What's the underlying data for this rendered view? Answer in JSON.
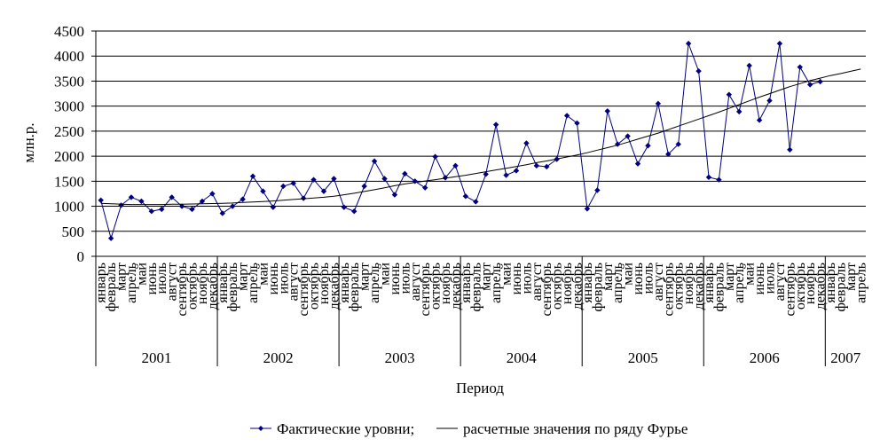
{
  "chart_data": {
    "type": "line",
    "title": "",
    "xlabel": "Период",
    "ylabel": "млн.р.",
    "ylim": [
      0,
      4500
    ],
    "yticks": [
      "0",
      "500",
      "1000",
      "1500",
      "2000",
      "2500",
      "3000",
      "3500",
      "4000",
      "4500"
    ],
    "grid": "horizontal",
    "legend_position": "bottom",
    "categories": [
      "январь",
      "февраль",
      "март",
      "апрель",
      "май",
      "июнь",
      "июль",
      "август",
      "сентябрь",
      "октябрь",
      "ноябрь",
      "декабрь",
      "январь",
      "февраль",
      "март",
      "апрель",
      "май",
      "июнь",
      "июль",
      "август",
      "сентябрь",
      "октябрь",
      "ноябрь",
      "декабрь",
      "январь",
      "февраль",
      "март",
      "апрель",
      "май",
      "июнь",
      "июль",
      "август",
      "сентябрь",
      "октябрь",
      "ноябрь",
      "декабрь",
      "январь",
      "февраль",
      "март",
      "апрель",
      "май",
      "июнь",
      "июль",
      "август",
      "сентябрь",
      "октябрь",
      "ноябрь",
      "декабрь",
      "январь",
      "февраль",
      "март",
      "апрель",
      "май",
      "июнь",
      "июль",
      "август",
      "сентябрь",
      "октябрь",
      "ноябрь",
      "декабрь",
      "январь",
      "февраль",
      "март",
      "апрель",
      "май",
      "июнь",
      "июль",
      "август",
      "сентябрь",
      "октябрь",
      "ноябрь",
      "декабрь",
      "январь",
      "февраль",
      "март",
      "апрель"
    ],
    "years": [
      {
        "label": "2001",
        "months": 12
      },
      {
        "label": "2002",
        "months": 12
      },
      {
        "label": "2003",
        "months": 12
      },
      {
        "label": "2004",
        "months": 12
      },
      {
        "label": "2005",
        "months": 12
      },
      {
        "label": "2006",
        "months": 12
      },
      {
        "label": "2007",
        "months": 4
      }
    ],
    "series": [
      {
        "name": "Фактические уровни;",
        "style": "line-with-diamond-markers",
        "color": "#000080",
        "values": [
          1120,
          360,
          1020,
          1180,
          1100,
          900,
          940,
          1180,
          1000,
          940,
          1100,
          1250,
          860,
          1000,
          1140,
          1600,
          1300,
          980,
          1400,
          1460,
          1160,
          1530,
          1300,
          1550,
          980,
          900,
          1400,
          1900,
          1550,
          1230,
          1650,
          1500,
          1370,
          1990,
          1570,
          1810,
          1200,
          1090,
          1640,
          2630,
          1620,
          1710,
          2260,
          1810,
          1790,
          1940,
          2810,
          2660,
          950,
          1320,
          2900,
          2240,
          2400,
          1850,
          2210,
          3050,
          2040,
          2240,
          4250,
          3700,
          1580,
          1530,
          3230,
          2890,
          3810,
          2720,
          3110,
          4250,
          2130,
          3780,
          3430,
          3490,
          null,
          null,
          null,
          null
        ]
      },
      {
        "name": "расчетные значения по ряду Фурье",
        "style": "line",
        "color": "#000000",
        "values": [
          1060,
          1050,
          1040,
          1035,
          1035,
          1035,
          1035,
          1040,
          1040,
          1045,
          1050,
          1055,
          1060,
          1065,
          1075,
          1085,
          1095,
          1105,
          1120,
          1135,
          1150,
          1165,
          1180,
          1200,
          1230,
          1260,
          1295,
          1330,
          1370,
          1410,
          1445,
          1475,
          1505,
          1530,
          1560,
          1590,
          1620,
          1655,
          1690,
          1725,
          1760,
          1795,
          1830,
          1870,
          1905,
          1945,
          1985,
          2025,
          2070,
          2120,
          2170,
          2220,
          2280,
          2340,
          2400,
          2460,
          2530,
          2600,
          2670,
          2740,
          2810,
          2880,
          2955,
          3030,
          3105,
          3180,
          3250,
          3320,
          3390,
          3450,
          3510,
          3560,
          3610,
          3650,
          3695,
          3740
        ]
      }
    ]
  }
}
